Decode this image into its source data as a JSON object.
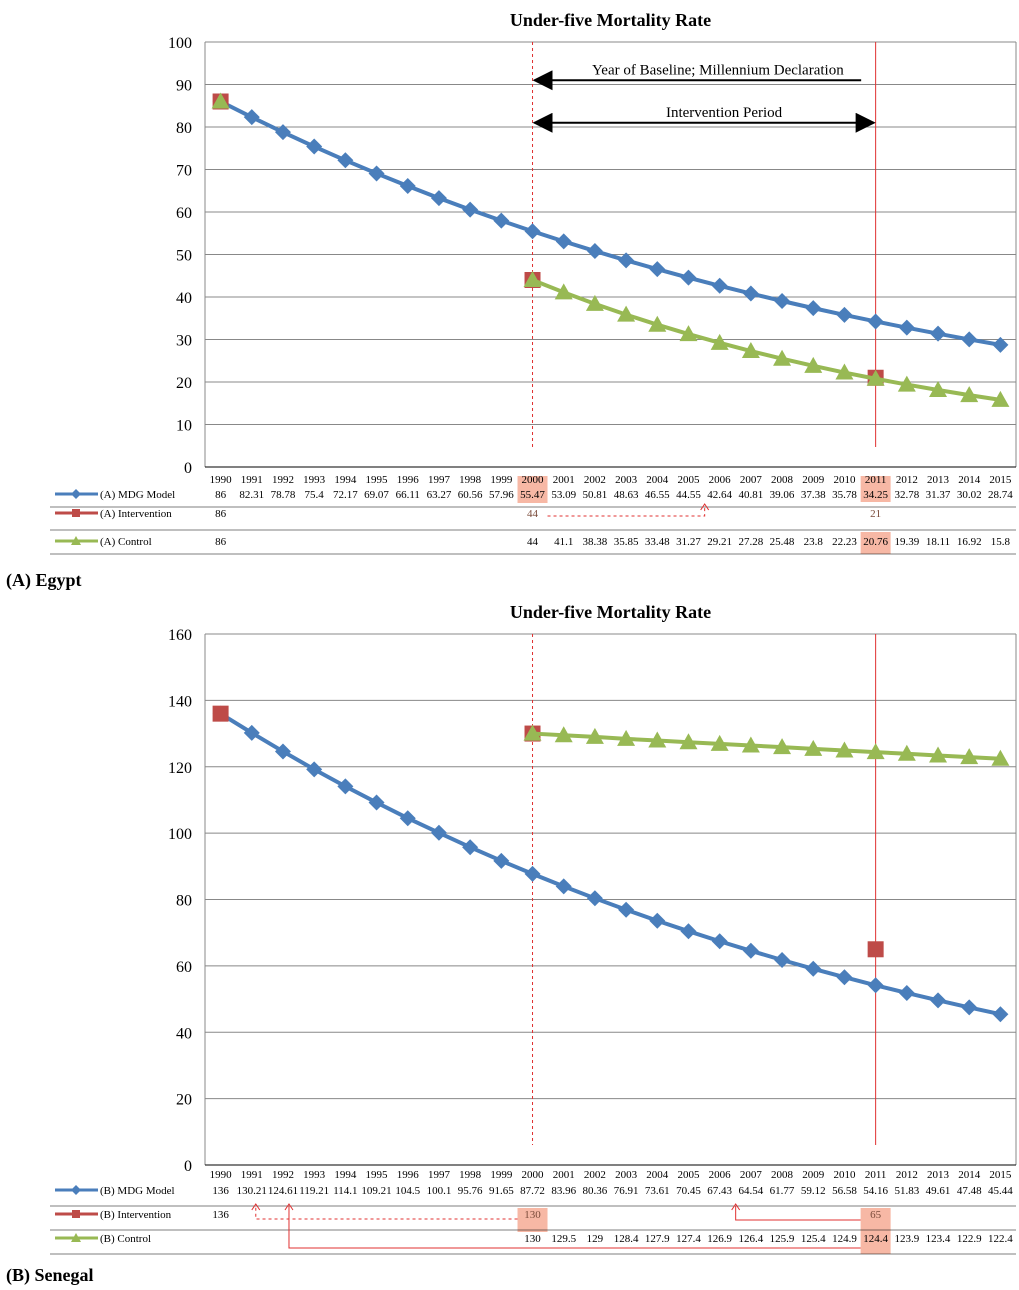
{
  "colors": {
    "mdg": "#4a7ebb",
    "intervention": "#be4b48",
    "control": "#98b954",
    "marker_line": "#e03030",
    "highlight": "#f7b8a5",
    "grid": "#888888",
    "axis": "#000000"
  },
  "chart_data": [
    {
      "type": "line",
      "panel_label": "(A) Egypt",
      "title": "Under-five Mortality Rate",
      "ylim": [
        0,
        100
      ],
      "yticks": [
        0,
        10,
        20,
        30,
        40,
        50,
        60,
        70,
        80,
        90,
        100
      ],
      "grid": true,
      "legend": "table-below",
      "categories": [
        "1990",
        "1991",
        "1992",
        "1993",
        "1994",
        "1995",
        "1996",
        "1997",
        "1998",
        "1999",
        "2000",
        "2001",
        "2002",
        "2003",
        "2004",
        "2005",
        "2006",
        "2007",
        "2008",
        "2009",
        "2010",
        "2011",
        "2012",
        "2013",
        "2014",
        "2015"
      ],
      "series": [
        {
          "name": "(A) MDG Model",
          "marker": "diamond",
          "color_key": "mdg",
          "values": [
            86,
            82.31,
            78.78,
            75.4,
            72.17,
            69.07,
            66.11,
            63.27,
            60.56,
            57.96,
            55.47,
            53.09,
            50.81,
            48.63,
            46.55,
            44.55,
            42.64,
            40.81,
            39.06,
            37.38,
            35.78,
            34.25,
            32.78,
            31.37,
            30.02,
            28.74
          ],
          "labels": [
            "86",
            "82.31",
            "78.78",
            "75.4",
            "72.17",
            "69.07",
            "66.11",
            "63.27",
            "60.56",
            "57.96",
            "55.47",
            "53.09",
            "50.81",
            "48.63",
            "46.55",
            "44.55",
            "42.64",
            "40.81",
            "39.06",
            "37.38",
            "35.78",
            "34.25",
            "32.78",
            "31.37",
            "30.02",
            "28.74"
          ]
        },
        {
          "name": "(A) Intervention",
          "marker": "square",
          "color_key": "intervention",
          "values": [
            86,
            null,
            null,
            null,
            null,
            null,
            null,
            null,
            null,
            null,
            44,
            null,
            null,
            null,
            null,
            null,
            null,
            null,
            null,
            null,
            null,
            21,
            null,
            null,
            null,
            null
          ],
          "labels": [
            "86",
            "",
            "",
            "",
            "",
            "",
            "",
            "",
            "",
            "",
            "44",
            "",
            "",
            "",
            "",
            "",
            "",
            "",
            "",
            "",
            "",
            "21",
            "",
            "",
            "",
            ""
          ]
        },
        {
          "name": "(A) Control",
          "marker": "triangle",
          "color_key": "control",
          "values": [
            86,
            null,
            null,
            null,
            null,
            null,
            null,
            null,
            null,
            null,
            44,
            41.1,
            38.38,
            35.85,
            33.48,
            31.27,
            29.21,
            27.28,
            25.48,
            23.8,
            22.23,
            20.76,
            19.39,
            18.11,
            16.92,
            15.8
          ],
          "labels": [
            "86",
            "",
            "",
            "",
            "",
            "",
            "",
            "",
            "",
            "",
            "44",
            "41.1",
            "38.38",
            "35.85",
            "33.48",
            "31.27",
            "29.21",
            "27.28",
            "25.48",
            "23.8",
            "22.23",
            "20.76",
            "19.39",
            "18.11",
            "16.92",
            "15.8"
          ]
        }
      ],
      "annotations": [
        {
          "text": "Year of Baseline; Millennium Declaration",
          "arrow": "left",
          "from_index": 10,
          "to_index": 20.6,
          "y": 91
        },
        {
          "text": "Intervention Period",
          "arrow": "both",
          "from_index": 10,
          "to_index": 21,
          "y": 81
        }
      ],
      "vlines": [
        {
          "index": 10,
          "style": "dashed"
        },
        {
          "index": 21,
          "style": "solid"
        }
      ]
    },
    {
      "type": "line",
      "panel_label": "(B) Senegal",
      "title": "Under-five Mortality Rate",
      "ylim": [
        0,
        160
      ],
      "yticks": [
        0,
        20,
        40,
        60,
        80,
        100,
        120,
        140,
        160
      ],
      "grid": true,
      "legend": "table-below",
      "categories": [
        "1990",
        "1991",
        "1992",
        "1993",
        "1994",
        "1995",
        "1996",
        "1997",
        "1998",
        "1999",
        "2000",
        "2001",
        "2002",
        "2003",
        "2004",
        "2005",
        "2006",
        "2007",
        "2008",
        "2009",
        "2010",
        "2011",
        "2012",
        "2013",
        "2014",
        "2015"
      ],
      "series": [
        {
          "name": "(B) MDG Model",
          "marker": "diamond",
          "color_key": "mdg",
          "values": [
            136,
            130.21,
            124.61,
            119.21,
            114.1,
            109.21,
            104.5,
            100.1,
            95.76,
            91.65,
            87.72,
            83.96,
            80.36,
            76.91,
            73.61,
            70.45,
            67.43,
            64.54,
            61.77,
            59.12,
            56.58,
            54.16,
            51.83,
            49.61,
            47.48,
            45.44
          ],
          "labels": [
            "136",
            "130.21",
            "124.61",
            "119.21",
            "114.1",
            "109.21",
            "104.5",
            "100.1",
            "95.76",
            "91.65",
            "87.72",
            "83.96",
            "80.36",
            "76.91",
            "73.61",
            "70.45",
            "67.43",
            "64.54",
            "61.77",
            "59.12",
            "56.58",
            "54.16",
            "51.83",
            "49.61",
            "47.48",
            "45.44"
          ]
        },
        {
          "name": "(B) Intervention",
          "marker": "square",
          "color_key": "intervention",
          "values": [
            136,
            null,
            null,
            null,
            null,
            null,
            null,
            null,
            null,
            null,
            130,
            null,
            null,
            null,
            null,
            null,
            null,
            null,
            null,
            null,
            null,
            65,
            null,
            null,
            null,
            null
          ],
          "labels": [
            "136",
            "",
            "",
            "",
            "",
            "",
            "",
            "",
            "",
            "",
            "130",
            "",
            "",
            "",
            "",
            "",
            "",
            "",
            "",
            "",
            "",
            "65",
            "",
            "",
            "",
            ""
          ]
        },
        {
          "name": "(B) Control",
          "marker": "triangle",
          "color_key": "control",
          "values": [
            null,
            null,
            null,
            null,
            null,
            null,
            null,
            null,
            null,
            null,
            130,
            129.5,
            129,
            128.4,
            127.9,
            127.4,
            126.9,
            126.4,
            125.9,
            125.4,
            124.9,
            124.4,
            123.9,
            123.4,
            122.9,
            122.4
          ],
          "labels": [
            "",
            "",
            "",
            "",
            "",
            "",
            "",
            "",
            "",
            "",
            "130",
            "129.5",
            "129",
            "128.4",
            "127.9",
            "127.4",
            "126.9",
            "126.4",
            "125.9",
            "125.4",
            "124.9",
            "124.4",
            "123.9",
            "123.4",
            "122.9",
            "122.4"
          ]
        }
      ],
      "vlines": [
        {
          "index": 10,
          "style": "dashed"
        },
        {
          "index": 21,
          "style": "solid"
        }
      ]
    }
  ]
}
